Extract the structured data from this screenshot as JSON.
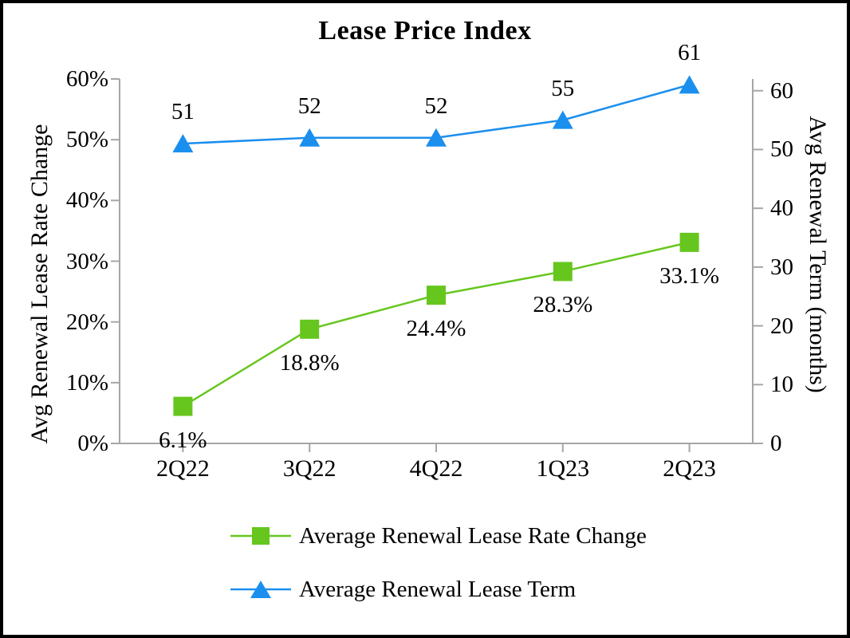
{
  "window": {
    "background": "#FFFFFF",
    "border_color": "#000000"
  },
  "chart_data": {
    "type": "line",
    "title": "Lease Price Index",
    "categories": [
      "2Q22",
      "3Q22",
      "4Q22",
      "1Q23",
      "2Q23"
    ],
    "series": [
      {
        "name": "Average Renewal Lease Rate Change",
        "axis": "left",
        "marker": "square",
        "color": "#66C61E",
        "values": [
          6.1,
          18.8,
          24.4,
          28.3,
          33.1
        ],
        "data_labels": [
          "6.1%",
          "18.8%",
          "24.4%",
          "28.3%",
          "33.1%"
        ],
        "label_position": "below"
      },
      {
        "name": "Average Renewal Lease Term",
        "axis": "right",
        "marker": "triangle",
        "color": "#1B8FEE",
        "values": [
          51,
          52,
          52,
          55,
          61
        ],
        "data_labels": [
          "51",
          "52",
          "52",
          "55",
          "61"
        ],
        "label_position": "above"
      }
    ],
    "left_axis": {
      "title": "Avg Renewal Lease Rate Change",
      "tick_labels": [
        "0%",
        "10%",
        "20%",
        "30%",
        "40%",
        "50%",
        "60%"
      ],
      "tick_values": [
        0,
        10,
        20,
        30,
        40,
        50,
        60
      ],
      "min": 0,
      "max": 60
    },
    "right_axis": {
      "title": "Avg Renewal Term (months)",
      "tick_labels": [
        "0",
        "10",
        "20",
        "30",
        "40",
        "50",
        "60"
      ],
      "tick_values": [
        0,
        10,
        20,
        30,
        40,
        50,
        60
      ],
      "min": 0,
      "max": 62
    },
    "legend": {
      "position": "bottom",
      "items": [
        "Average Renewal Lease Rate Change",
        "Average Renewal Lease Term"
      ]
    },
    "grid": false,
    "axis_color": "#A6A6A6",
    "text_color": "#000000"
  }
}
